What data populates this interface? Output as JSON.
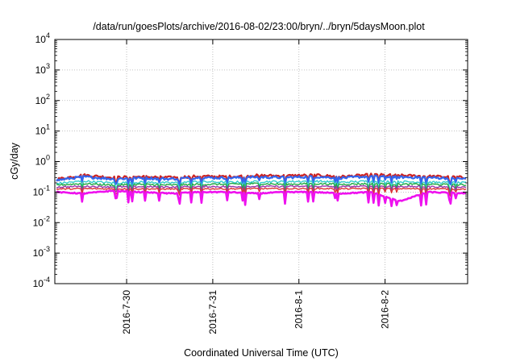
{
  "chart_data": {
    "type": "line",
    "title": "/data/run/goesPlots/archive/2016-08-02/23:00/bryn/../bryn/5daysMoon.plot",
    "xlabel": "Coordinated Universal Time (UTC)",
    "ylabel": "cGy/day",
    "yscale": "log",
    "ylim": [
      0.0001,
      10000
    ],
    "xlim": [
      "2016-07-29T04:00",
      "2016-08-02T23:00"
    ],
    "y_ticks": [
      {
        "value": 0.0001,
        "mantissa": "10",
        "exp": "-4"
      },
      {
        "value": 0.001,
        "mantissa": "10",
        "exp": "-3"
      },
      {
        "value": 0.01,
        "mantissa": "10",
        "exp": "-2"
      },
      {
        "value": 0.1,
        "mantissa": "10",
        "exp": "-1"
      },
      {
        "value": 1,
        "mantissa": "10",
        "exp": "0"
      },
      {
        "value": 10,
        "mantissa": "10",
        "exp": "1"
      },
      {
        "value": 100,
        "mantissa": "10",
        "exp": "2"
      },
      {
        "value": 1000,
        "mantissa": "10",
        "exp": "3"
      },
      {
        "value": 10000,
        "mantissa": "10",
        "exp": "4"
      }
    ],
    "x_ticks": [
      {
        "label": "2016-7-30",
        "date": "2016-07-30T00:00"
      },
      {
        "label": "2016-7-31",
        "date": "2016-07-31T00:00"
      },
      {
        "label": "2016-8-1",
        "date": "2016-08-01T00:00"
      },
      {
        "label": "2016-8-2",
        "date": "2016-08-02T00:00"
      }
    ],
    "grid": true,
    "legend": "none",
    "series": [
      {
        "color": "#cc2222",
        "x": [
          "2016-07-29T04:00",
          "2016-07-29T12:00",
          "2016-07-29T20:00",
          "2016-07-30T04:00",
          "2016-07-30T12:00",
          "2016-07-30T20:00",
          "2016-07-31T04:00",
          "2016-07-31T12:00",
          "2016-07-31T20:00",
          "2016-08-01T04:00",
          "2016-08-01T12:00",
          "2016-08-01T20:00",
          "2016-08-02T04:00",
          "2016-08-02T12:00",
          "2016-08-02T23:00"
        ],
        "values": [
          0.26,
          0.36,
          0.3,
          0.32,
          0.3,
          0.33,
          0.32,
          0.35,
          0.34,
          0.36,
          0.32,
          0.37,
          0.35,
          0.33,
          0.3
        ]
      },
      {
        "color": "#3366ee",
        "x": [
          "2016-07-29T04:00",
          "2016-07-29T12:00",
          "2016-07-29T20:00",
          "2016-07-30T04:00",
          "2016-07-30T12:00",
          "2016-07-30T20:00",
          "2016-07-31T04:00",
          "2016-07-31T12:00",
          "2016-07-31T20:00",
          "2016-08-01T04:00",
          "2016-08-01T12:00",
          "2016-08-01T20:00",
          "2016-08-02T04:00",
          "2016-08-02T12:00",
          "2016-08-02T23:00"
        ],
        "values": [
          0.24,
          0.32,
          0.27,
          0.29,
          0.27,
          0.3,
          0.29,
          0.31,
          0.3,
          0.32,
          0.29,
          0.33,
          0.31,
          0.3,
          0.27
        ]
      },
      {
        "color": "#33cccc",
        "x": [
          "2016-07-29T04:00",
          "2016-07-29T12:00",
          "2016-07-29T20:00",
          "2016-07-30T04:00",
          "2016-07-30T12:00",
          "2016-07-30T20:00",
          "2016-07-31T04:00",
          "2016-07-31T12:00",
          "2016-07-31T20:00",
          "2016-08-01T04:00",
          "2016-08-01T12:00",
          "2016-08-01T20:00",
          "2016-08-02T04:00",
          "2016-08-02T12:00",
          "2016-08-02T23:00"
        ],
        "values": [
          0.19,
          0.23,
          0.2,
          0.21,
          0.2,
          0.22,
          0.21,
          0.22,
          0.22,
          0.23,
          0.21,
          0.23,
          0.22,
          0.21,
          0.2
        ]
      },
      {
        "color": "#22aa44",
        "x": [
          "2016-07-29T04:00",
          "2016-07-29T12:00",
          "2016-07-29T20:00",
          "2016-07-30T04:00",
          "2016-07-30T12:00",
          "2016-07-30T20:00",
          "2016-07-31T04:00",
          "2016-07-31T12:00",
          "2016-07-31T20:00",
          "2016-08-01T04:00",
          "2016-08-01T12:00",
          "2016-08-01T20:00",
          "2016-08-02T04:00",
          "2016-08-02T12:00",
          "2016-08-02T23:00"
        ],
        "values": [
          0.17,
          0.19,
          0.17,
          0.18,
          0.17,
          0.18,
          0.18,
          0.19,
          0.18,
          0.19,
          0.18,
          0.19,
          0.18,
          0.18,
          0.17
        ]
      },
      {
        "color": "#9933aa",
        "x": [
          "2016-07-29T04:00",
          "2016-07-29T12:00",
          "2016-07-29T20:00",
          "2016-07-30T04:00",
          "2016-07-30T12:00",
          "2016-07-30T20:00",
          "2016-07-31T04:00",
          "2016-07-31T12:00",
          "2016-07-31T20:00",
          "2016-08-01T04:00",
          "2016-08-01T12:00",
          "2016-08-01T20:00",
          "2016-08-02T04:00",
          "2016-08-02T12:00",
          "2016-08-02T23:00"
        ],
        "values": [
          0.145,
          0.155,
          0.148,
          0.15,
          0.147,
          0.152,
          0.15,
          0.154,
          0.152,
          0.155,
          0.15,
          0.156,
          0.153,
          0.15,
          0.146
        ]
      },
      {
        "color": "#dd3333",
        "x": [
          "2016-07-29T04:00",
          "2016-07-29T12:00",
          "2016-07-29T20:00",
          "2016-07-30T04:00",
          "2016-07-30T12:00",
          "2016-07-30T20:00",
          "2016-07-31T04:00",
          "2016-07-31T12:00",
          "2016-07-31T20:00",
          "2016-08-01T04:00",
          "2016-08-01T12:00",
          "2016-08-01T20:00",
          "2016-08-02T04:00",
          "2016-08-02T12:00",
          "2016-08-02T23:00"
        ],
        "values": [
          0.125,
          0.13,
          0.127,
          0.128,
          0.126,
          0.129,
          0.128,
          0.13,
          0.129,
          0.131,
          0.128,
          0.131,
          0.129,
          0.128,
          0.125
        ]
      },
      {
        "color": "#ee11ee",
        "x": [
          "2016-07-29T04:00",
          "2016-07-29T12:00",
          "2016-07-29T20:00",
          "2016-07-30T04:00",
          "2016-07-30T12:00",
          "2016-07-30T20:00",
          "2016-07-31T04:00",
          "2016-07-31T12:00",
          "2016-07-31T20:00",
          "2016-08-01T04:00",
          "2016-08-01T12:00",
          "2016-08-01T20:00",
          "2016-08-02T04:00",
          "2016-08-02T12:00",
          "2016-08-02T23:00"
        ],
        "values": [
          0.1,
          0.09,
          0.11,
          0.1,
          0.09,
          0.1,
          0.1,
          0.09,
          0.1,
          0.1,
          0.09,
          0.1,
          0.05,
          0.1,
          0.09
        ]
      }
    ]
  }
}
